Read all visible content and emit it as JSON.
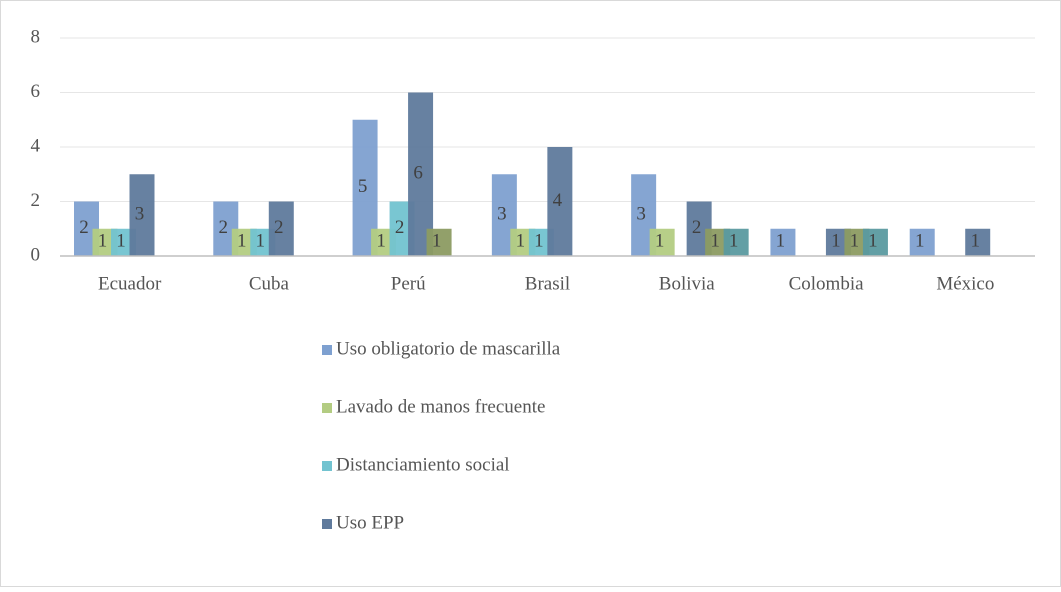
{
  "chart_data": {
    "type": "bar",
    "categories": [
      "Ecuador",
      "Cuba",
      "Perú",
      "Brasil",
      "Bolivia",
      "Colombia",
      "México"
    ],
    "series": [
      {
        "name": "Uso obligatorio de mascarilla",
        "color": "#7ea0d0",
        "values": [
          2,
          2,
          5,
          3,
          3,
          1,
          1
        ]
      },
      {
        "name": "Lavado de manos frecuente",
        "color": "#b3cc82",
        "values": [
          1,
          1,
          1,
          1,
          1,
          null,
          null
        ]
      },
      {
        "name": "Distanciamiento social",
        "color": "#72c3d0",
        "values": [
          1,
          1,
          2,
          1,
          null,
          null,
          null
        ]
      },
      {
        "name": "Uso EPP",
        "color": "#5f7a9c",
        "values": [
          3,
          2,
          6,
          4,
          2,
          1,
          1
        ]
      },
      {
        "color": "#8c9b62",
        "values": [
          null,
          null,
          1,
          null,
          1,
          1,
          null
        ]
      },
      {
        "color": "#5b9aa0",
        "values": [
          null,
          null,
          null,
          null,
          1,
          1,
          null
        ]
      }
    ],
    "ylim": [
      0,
      8
    ],
    "yticks": [
      0,
      2,
      4,
      6,
      8
    ],
    "grid": true
  }
}
